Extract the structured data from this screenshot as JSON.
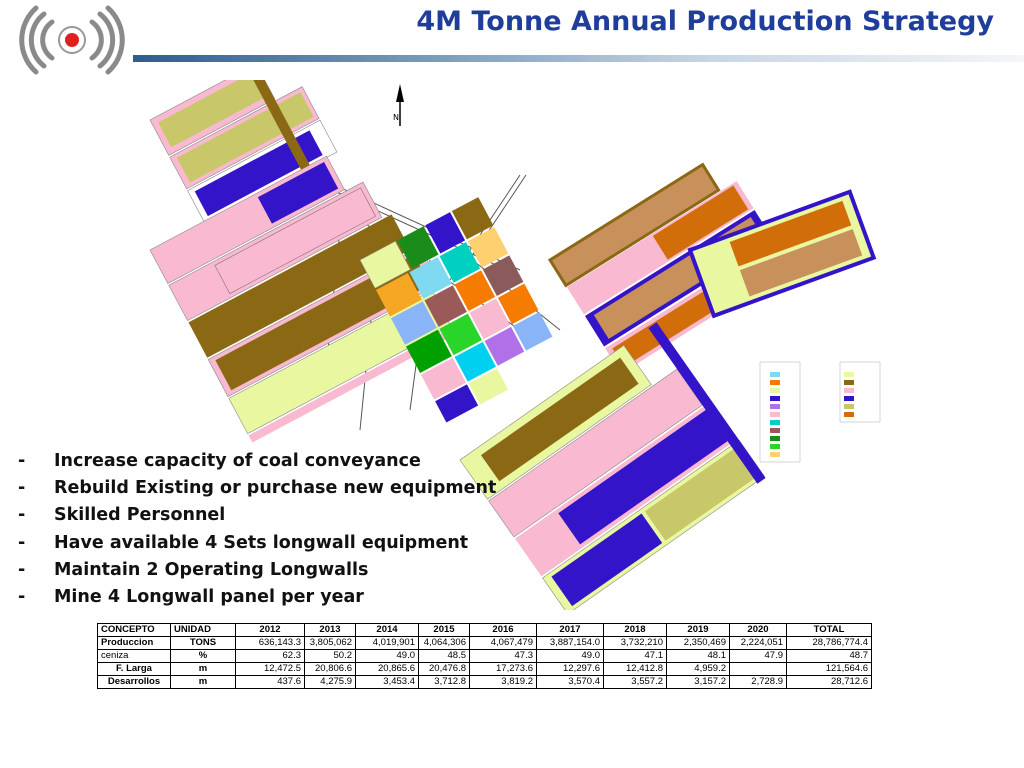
{
  "title": "4M Tonne Annual Production Strategy",
  "logo": {
    "icon": "signal-broadcast-icon",
    "colors": {
      "ring": "#808080",
      "dot": "#e02020"
    }
  },
  "map": {
    "north_label": "N"
  },
  "bullets": [
    "Increase capacity of coal conveyance",
    "Rebuild Existing or purchase new equipment",
    "Skilled Personnel",
    "Have available 4 Sets longwall equipment",
    "Maintain 2 Operating Longwalls",
    "Mine 4 Longwall panel per year"
  ],
  "bullet_marker": "-",
  "table": {
    "headers": [
      "CONCEPTO",
      "UNIDAD",
      "2012",
      "2013",
      "2014",
      "2015",
      "2016",
      "2017",
      "2018",
      "2019",
      "2020",
      "TOTAL"
    ],
    "rows": [
      {
        "concept": "Produccion",
        "unit": "TONS",
        "values": [
          "636,143.3",
          "3,805,062",
          "4,019,901",
          "4,064,306",
          "4,067,479",
          "3,887,154.0",
          "3,732,210",
          "2,350,469",
          "2,224,051",
          "28,786,774.4"
        ]
      },
      {
        "concept": "ceniza",
        "unit": "%",
        "values": [
          "62.3",
          "50.2",
          "49.0",
          "48.5",
          "47.3",
          "49.0",
          "47.1",
          "48.1",
          "47.9",
          "48.7"
        ]
      },
      {
        "concept": "F. Larga",
        "unit": "m",
        "values": [
          "12,472.5",
          "20,806.6",
          "20,865.6",
          "20,476.8",
          "17,273.6",
          "12,297.6",
          "12,412.8",
          "4,959.2",
          "",
          "121,564.6"
        ]
      },
      {
        "concept": "Desarrollos",
        "unit": "m",
        "values": [
          "437.6",
          "4,275.9",
          "3,453.4",
          "3,712.8",
          "3,819.2",
          "3,570.4",
          "3,557.2",
          "3,157.2",
          "2,728.9",
          "28,712.6"
        ]
      }
    ]
  },
  "colors": {
    "title": "#1f3d9a"
  }
}
